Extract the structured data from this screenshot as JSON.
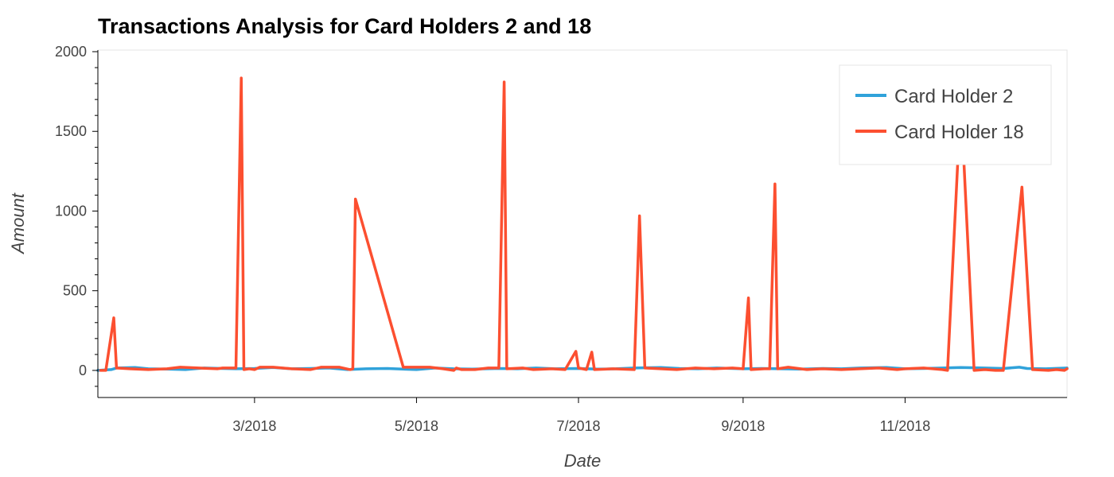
{
  "chart_data": {
    "type": "line",
    "title": "Transactions Analysis for Card Holders 2 and 18",
    "xlabel": "Date",
    "ylabel": "Amount",
    "xlim": [
      "2018-01-01",
      "2019-01-01"
    ],
    "ylim": [
      -170,
      2010
    ],
    "grid": false,
    "legend": "top-right",
    "x_ticks": [
      {
        "date": "2018-03-01",
        "label": "3/2018"
      },
      {
        "date": "2018-05-01",
        "label": "5/2018"
      },
      {
        "date": "2018-07-01",
        "label": "7/2018"
      },
      {
        "date": "2018-09-01",
        "label": "9/2018"
      },
      {
        "date": "2018-11-01",
        "label": "11/2018"
      }
    ],
    "y_ticks": [
      0,
      500,
      1000,
      1500,
      2000
    ],
    "series": [
      {
        "name": "Card Holder 2",
        "color": "#30a2da",
        "points": [
          [
            "2018-01-01",
            0
          ],
          [
            "2018-01-06",
            5
          ],
          [
            "2018-01-08",
            15
          ],
          [
            "2018-01-15",
            18
          ],
          [
            "2018-01-20",
            10
          ],
          [
            "2018-01-27",
            8
          ],
          [
            "2018-02-03",
            5
          ],
          [
            "2018-02-10",
            15
          ],
          [
            "2018-02-17",
            12
          ],
          [
            "2018-02-22",
            10
          ],
          [
            "2018-03-01",
            12
          ],
          [
            "2018-03-08",
            18
          ],
          [
            "2018-03-15",
            10
          ],
          [
            "2018-03-22",
            12
          ],
          [
            "2018-03-29",
            15
          ],
          [
            "2018-04-05",
            5
          ],
          [
            "2018-04-12",
            10
          ],
          [
            "2018-04-20",
            12
          ],
          [
            "2018-05-01",
            5
          ],
          [
            "2018-05-08",
            15
          ],
          [
            "2018-05-15",
            10
          ],
          [
            "2018-05-22",
            8
          ],
          [
            "2018-06-01",
            12
          ],
          [
            "2018-06-08",
            10
          ],
          [
            "2018-06-15",
            15
          ],
          [
            "2018-06-22",
            10
          ],
          [
            "2018-07-01",
            12
          ],
          [
            "2018-07-08",
            8
          ],
          [
            "2018-07-15",
            10
          ],
          [
            "2018-07-22",
            15
          ],
          [
            "2018-08-01",
            18
          ],
          [
            "2018-08-08",
            12
          ],
          [
            "2018-08-15",
            10
          ],
          [
            "2018-08-22",
            15
          ],
          [
            "2018-09-01",
            10
          ],
          [
            "2018-09-08",
            12
          ],
          [
            "2018-09-15",
            10
          ],
          [
            "2018-09-22",
            8
          ],
          [
            "2018-10-01",
            12
          ],
          [
            "2018-10-08",
            10
          ],
          [
            "2018-10-15",
            15
          ],
          [
            "2018-10-25",
            18
          ],
          [
            "2018-11-01",
            10
          ],
          [
            "2018-11-08",
            12
          ],
          [
            "2018-11-15",
            15
          ],
          [
            "2018-11-22",
            18
          ],
          [
            "2018-12-01",
            15
          ],
          [
            "2018-12-08",
            12
          ],
          [
            "2018-12-14",
            20
          ],
          [
            "2018-12-17",
            12
          ],
          [
            "2018-12-24",
            10
          ],
          [
            "2019-01-01",
            15
          ]
        ]
      },
      {
        "name": "Card Holder 18",
        "color": "#fc4f30",
        "points": [
          [
            "2018-01-02",
            0
          ],
          [
            "2018-01-04",
            0
          ],
          [
            "2018-01-07",
            330
          ],
          [
            "2018-01-08",
            15
          ],
          [
            "2018-01-13",
            10
          ],
          [
            "2018-01-20",
            5
          ],
          [
            "2018-01-27",
            10
          ],
          [
            "2018-02-01",
            20
          ],
          [
            "2018-02-08",
            15
          ],
          [
            "2018-02-15",
            10
          ],
          [
            "2018-02-17",
            15
          ],
          [
            "2018-02-22",
            15
          ],
          [
            "2018-02-24",
            1835
          ],
          [
            "2018-02-25",
            5
          ],
          [
            "2018-02-27",
            10
          ],
          [
            "2018-03-01",
            5
          ],
          [
            "2018-03-03",
            20
          ],
          [
            "2018-03-08",
            20
          ],
          [
            "2018-03-15",
            10
          ],
          [
            "2018-03-22",
            5
          ],
          [
            "2018-03-26",
            20
          ],
          [
            "2018-04-02",
            20
          ],
          [
            "2018-04-06",
            5
          ],
          [
            "2018-04-07",
            10
          ],
          [
            "2018-04-08",
            1075
          ],
          [
            "2018-04-26",
            20
          ],
          [
            "2018-05-02",
            20
          ],
          [
            "2018-05-06",
            20
          ],
          [
            "2018-05-11",
            10
          ],
          [
            "2018-05-15",
            0
          ],
          [
            "2018-05-16",
            15
          ],
          [
            "2018-05-18",
            5
          ],
          [
            "2018-05-23",
            5
          ],
          [
            "2018-05-28",
            15
          ],
          [
            "2018-06-01",
            15
          ],
          [
            "2018-06-03",
            1810
          ],
          [
            "2018-06-04",
            10
          ],
          [
            "2018-06-10",
            15
          ],
          [
            "2018-06-14",
            5
          ],
          [
            "2018-06-21",
            10
          ],
          [
            "2018-06-26",
            5
          ],
          [
            "2018-06-30",
            120
          ],
          [
            "2018-07-01",
            15
          ],
          [
            "2018-07-04",
            5
          ],
          [
            "2018-07-06",
            115
          ],
          [
            "2018-07-07",
            5
          ],
          [
            "2018-07-14",
            10
          ],
          [
            "2018-07-22",
            5
          ],
          [
            "2018-07-24",
            970
          ],
          [
            "2018-07-26",
            15
          ],
          [
            "2018-08-01",
            10
          ],
          [
            "2018-08-07",
            5
          ],
          [
            "2018-08-14",
            15
          ],
          [
            "2018-08-21",
            10
          ],
          [
            "2018-08-28",
            15
          ],
          [
            "2018-09-01",
            10
          ],
          [
            "2018-09-03",
            455
          ],
          [
            "2018-09-04",
            5
          ],
          [
            "2018-09-09",
            10
          ],
          [
            "2018-09-11",
            10
          ],
          [
            "2018-09-13",
            1170
          ],
          [
            "2018-09-14",
            10
          ],
          [
            "2018-09-18",
            20
          ],
          [
            "2018-09-25",
            5
          ],
          [
            "2018-10-01",
            10
          ],
          [
            "2018-10-08",
            5
          ],
          [
            "2018-10-15",
            10
          ],
          [
            "2018-10-22",
            15
          ],
          [
            "2018-10-29",
            5
          ],
          [
            "2018-11-01",
            10
          ],
          [
            "2018-11-08",
            15
          ],
          [
            "2018-11-15",
            5
          ],
          [
            "2018-11-17",
            0
          ],
          [
            "2018-11-22",
            1700
          ],
          [
            "2018-11-27",
            0
          ],
          [
            "2018-12-01",
            5
          ],
          [
            "2018-12-05",
            0
          ],
          [
            "2018-12-08",
            0
          ],
          [
            "2018-12-15",
            1150
          ],
          [
            "2018-12-19",
            5
          ],
          [
            "2018-12-25",
            0
          ],
          [
            "2018-12-28",
            5
          ],
          [
            "2018-12-31",
            0
          ],
          [
            "2019-01-01",
            10
          ]
        ]
      }
    ]
  }
}
